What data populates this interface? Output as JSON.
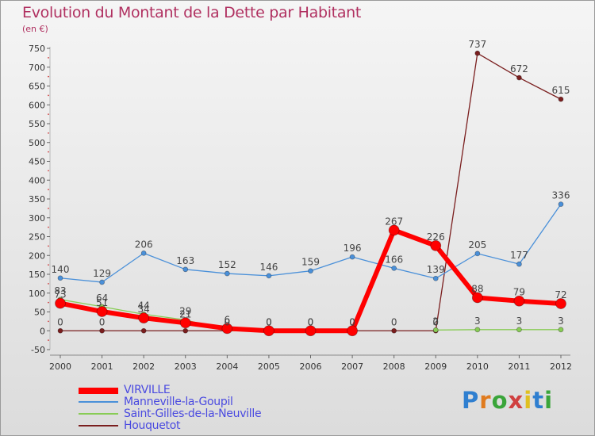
{
  "header": {
    "title": "Evolution du Montant de la Dette par Habitant",
    "subtitle": "(en €)"
  },
  "logo": {
    "text": "Proxiti",
    "letter_colors": [
      "#2f7fd0",
      "#e07b1e",
      "#3aa53a",
      "#d04040",
      "#e0c020",
      "#2f7fd0",
      "#3aa53a"
    ]
  },
  "chart_data": {
    "type": "line",
    "x": [
      "2000",
      "2001",
      "2002",
      "2003",
      "2004",
      "2005",
      "2006",
      "2007",
      "2008",
      "2009",
      "2010",
      "2011",
      "2012"
    ],
    "ylim": [
      -50,
      750
    ],
    "yticks": [
      -50,
      0,
      50,
      100,
      150,
      200,
      250,
      300,
      350,
      400,
      450,
      500,
      550,
      600,
      650,
      700,
      750
    ],
    "grid": false,
    "legend_position": "bottom-left",
    "series": [
      {
        "name": "Houquetot",
        "color": "#7a1e1e",
        "values": [
          0,
          0,
          0,
          0,
          0,
          0,
          0,
          0,
          0,
          0,
          737,
          672,
          615
        ],
        "labels": [
          "0",
          "0",
          "",
          "",
          "0",
          "0",
          "0",
          "0",
          "0",
          "0",
          "737",
          "672",
          "615"
        ]
      },
      {
        "name": "Saint-Gilles-de-la-Neuville",
        "color": "#88cc55",
        "values": [
          83,
          64,
          44,
          29,
          0,
          0,
          0,
          0,
          null,
          2,
          3,
          3,
          3
        ],
        "labels": [
          "83",
          "64",
          "44",
          "29",
          "",
          "",
          "",
          "",
          "",
          "2",
          "3",
          "3",
          "3"
        ]
      },
      {
        "name": "Manneville-la-Goupil",
        "color": "#4a90d9",
        "values": [
          140,
          129,
          206,
          163,
          152,
          146,
          159,
          196,
          166,
          139,
          205,
          177,
          336
        ],
        "labels": [
          "140",
          "129",
          "206",
          "163",
          "152",
          "146",
          "159",
          "196",
          "166",
          "139",
          "205",
          "177",
          "336"
        ]
      },
      {
        "name": "VIRVILLE",
        "color": "#ff0000",
        "values": [
          73,
          51,
          34,
          21,
          6,
          0,
          0,
          0,
          267,
          226,
          88,
          79,
          72
        ],
        "labels": [
          "73",
          "51",
          "34",
          "21",
          "6",
          "0",
          "0",
          "0",
          "267",
          "226",
          "88",
          "79",
          "72"
        ]
      }
    ]
  },
  "legend": [
    {
      "name": "VIRVILLE",
      "color": "#ff0000"
    },
    {
      "name": "Manneville-la-Goupil",
      "color": "#4a90d9"
    },
    {
      "name": "Saint-Gilles-de-la-Neuville",
      "color": "#88cc55"
    },
    {
      "name": "Houquetot",
      "color": "#7a1e1e"
    }
  ]
}
